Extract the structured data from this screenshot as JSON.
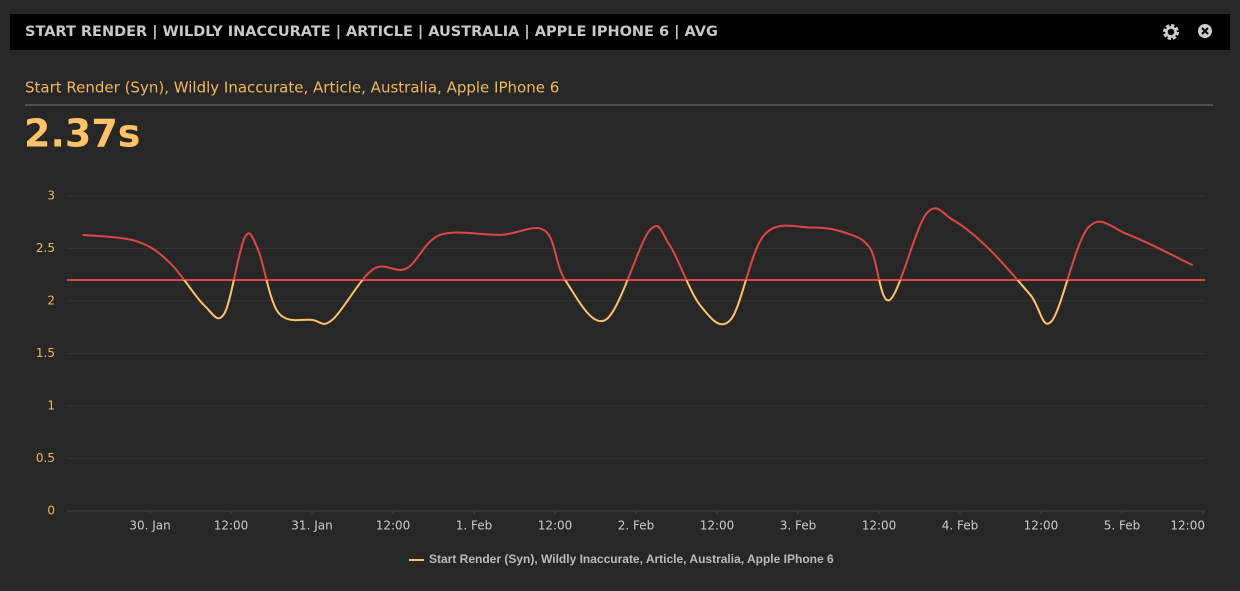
{
  "header": {
    "title": "START RENDER | WILDLY INACCURATE | ARTICLE | AUSTRALIA | APPLE IPHONE 6 | AVG"
  },
  "subtitle": "Start Render (Syn), Wildly Inaccurate, Article, Australia, Apple IPhone 6",
  "big_value": "2.37s",
  "chart_data": {
    "type": "line",
    "xlim": [
      -12.3,
      156.3
    ],
    "xticks": [
      {
        "value": 0,
        "label": "30. Jan"
      },
      {
        "value": 12,
        "label": "12:00"
      },
      {
        "value": 24,
        "label": "31. Jan"
      },
      {
        "value": 36,
        "label": "12:00"
      },
      {
        "value": 48,
        "label": "1. Feb"
      },
      {
        "value": 60,
        "label": "12:00"
      },
      {
        "value": 72,
        "label": "2. Feb"
      },
      {
        "value": 84,
        "label": "12:00"
      },
      {
        "value": 96,
        "label": "3. Feb"
      },
      {
        "value": 108,
        "label": "12:00"
      },
      {
        "value": 120,
        "label": "4. Feb"
      },
      {
        "value": 132,
        "label": "12:00"
      },
      {
        "value": 144,
        "label": "5. Feb"
      },
      {
        "value": 156,
        "label": "12:00"
      }
    ],
    "ylim": [
      0,
      3
    ],
    "yticks": [
      0,
      0.5,
      1,
      1.5,
      2,
      2.5,
      3
    ],
    "grid": true,
    "threshold": 2.2,
    "threshold_color": "#e04545",
    "series": [
      {
        "name": "Start Render (Syn), Wildly Inaccurate, Article, Australia, Apple IPhone 6",
        "color": "#ffc266",
        "x": [
          -10,
          -2,
          3,
          8,
          11,
          14,
          16,
          19,
          24,
          27,
          33,
          38,
          43,
          52,
          58.5,
          61.5,
          67.5,
          74,
          77,
          81.5,
          86,
          91,
          98,
          103,
          106.7,
          109.6,
          115,
          119,
          124.4,
          130.4,
          133.6,
          139,
          145,
          154.5
        ],
        "values": [
          2.63,
          2.57,
          2.36,
          1.96,
          1.88,
          2.6,
          2.49,
          1.89,
          1.82,
          1.82,
          2.3,
          2.31,
          2.63,
          2.63,
          2.67,
          2.2,
          1.82,
          2.67,
          2.53,
          1.96,
          1.82,
          2.63,
          2.7,
          2.65,
          2.5,
          2.01,
          2.83,
          2.77,
          2.49,
          2.06,
          1.81,
          2.7,
          2.63,
          2.34
        ]
      }
    ]
  }
}
